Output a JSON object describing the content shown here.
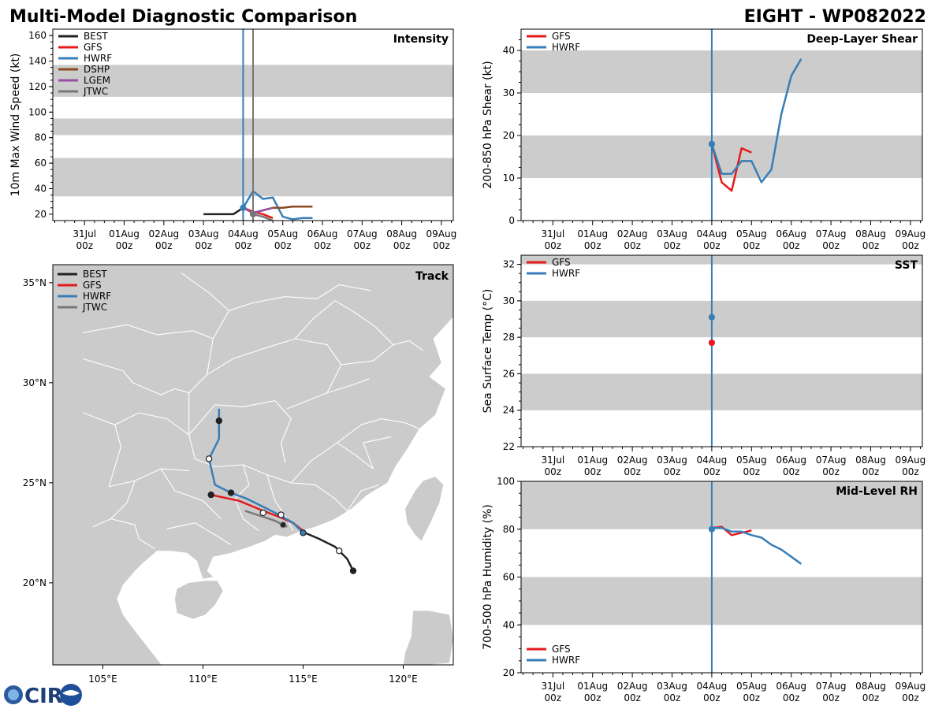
{
  "header": {
    "left_title": "Multi-Model Diagnostic Comparison",
    "right_title": "EIGHT - WP082022"
  },
  "logo": {
    "text": "CIRA"
  },
  "colors": {
    "BEST": "#222222",
    "GFS": "#e41a1c",
    "HWRF": "#377eb8",
    "DSHP": "#8c4a21",
    "LGEM": "#984ea3",
    "JTWC": "#777777",
    "band": "#cccccc",
    "land": "#cbcbcb"
  },
  "time_axis": {
    "labels_top": [
      "31Jul",
      "01Aug",
      "02Aug",
      "03Aug",
      "04Aug",
      "05Aug",
      "06Aug",
      "07Aug",
      "08Aug",
      "09Aug"
    ],
    "labels_bottom": [
      "00z",
      "00z",
      "00z",
      "00z",
      "00z",
      "00z",
      "00z",
      "00z",
      "00z",
      "00z"
    ],
    "start_day": -0.8,
    "end_day": 9.3
  },
  "chart_data": [
    {
      "id": "intensity",
      "type": "line",
      "title": "Intensity",
      "xlabel": "",
      "ylabel": "10m Max Wind Speed (kt)",
      "ylim": [
        15,
        165
      ],
      "yticks": [
        20,
        40,
        60,
        80,
        100,
        120,
        140,
        160
      ],
      "bands": [
        [
          34,
          64
        ],
        [
          82,
          95
        ],
        [
          112,
          137
        ]
      ],
      "vlines": [
        {
          "x": 4.0,
          "color": "HWRF"
        },
        {
          "x": 4.25,
          "color": "JTWC"
        }
      ],
      "legend": [
        "BEST",
        "GFS",
        "HWRF",
        "DSHP",
        "LGEM",
        "JTWC"
      ],
      "series": [
        {
          "name": "BEST",
          "x": [
            3.0,
            3.25,
            3.5,
            3.75,
            4.0
          ],
          "y": [
            20,
            20,
            20,
            20,
            25
          ]
        },
        {
          "name": "GFS",
          "x": [
            4.0,
            4.25,
            4.5,
            4.75
          ],
          "y": [
            25,
            22,
            20,
            17
          ]
        },
        {
          "name": "HWRF",
          "x": [
            4.0,
            4.25,
            4.5,
            4.75,
            5.0,
            5.25,
            5.5,
            5.75
          ],
          "y": [
            25,
            38,
            32,
            33,
            18,
            16,
            17,
            17
          ]
        },
        {
          "name": "DSHP",
          "x": [
            4.0,
            4.25,
            4.5,
            4.75,
            5.0,
            5.25,
            5.5,
            5.75
          ],
          "y": [
            25,
            21,
            23,
            25,
            25,
            26,
            26,
            26
          ]
        },
        {
          "name": "LGEM",
          "x": [
            4.0,
            4.25,
            4.5,
            4.75
          ],
          "y": [
            25,
            21,
            23,
            25
          ]
        },
        {
          "name": "JTWC",
          "x": [
            4.25,
            4.5,
            4.75
          ],
          "y": [
            20,
            18,
            15
          ]
        }
      ],
      "markers": [
        {
          "name": "HWRF",
          "x": 4.0,
          "y": 25,
          "fill": "solid"
        },
        {
          "name": "JTWC",
          "x": 4.25,
          "y": 20,
          "fill": "solid"
        }
      ]
    },
    {
      "id": "shear",
      "type": "line",
      "title": "Deep-Layer Shear",
      "xlabel": "",
      "ylabel": "200-850 hPa Shear (kt)",
      "ylim": [
        0,
        45
      ],
      "yticks": [
        0,
        10,
        20,
        30,
        40
      ],
      "bands": [
        [
          10,
          20
        ],
        [
          30,
          40
        ]
      ],
      "vlines": [
        {
          "x": 4.0,
          "color": "HWRF"
        }
      ],
      "legend": [
        "GFS",
        "HWRF"
      ],
      "series": [
        {
          "name": "GFS",
          "x": [
            4.0,
            4.25,
            4.5,
            4.75,
            5.0
          ],
          "y": [
            18,
            9,
            7,
            17,
            16
          ]
        },
        {
          "name": "HWRF",
          "x": [
            4.0,
            4.25,
            4.5,
            4.75,
            5.0,
            5.25,
            5.5,
            5.75,
            6.0,
            6.25
          ],
          "y": [
            18,
            11,
            11,
            14,
            14,
            9,
            12,
            25,
            34,
            38
          ]
        }
      ],
      "markers": [
        {
          "name": "HWRF",
          "x": 4.0,
          "y": 18,
          "fill": "solid"
        }
      ]
    },
    {
      "id": "sst",
      "type": "line",
      "title": "SST",
      "xlabel": "",
      "ylabel": "Sea Surface Temp (°C)",
      "ylim": [
        22,
        32.5
      ],
      "yticks": [
        22,
        24,
        26,
        28,
        30,
        32
      ],
      "bands": [
        [
          24,
          26
        ],
        [
          28,
          30
        ],
        [
          32,
          32.5
        ]
      ],
      "vlines": [
        {
          "x": 4.0,
          "color": "HWRF"
        }
      ],
      "legend": [
        "GFS",
        "HWRF"
      ],
      "series": [],
      "markers": [
        {
          "name": "HWRF",
          "x": 4.0,
          "y": 29.1,
          "fill": "solid"
        },
        {
          "name": "GFS",
          "x": 4.0,
          "y": 27.7,
          "fill": "solid"
        }
      ]
    },
    {
      "id": "rh",
      "type": "line",
      "title": "Mid-Level RH",
      "xlabel": "",
      "ylabel": "700-500 hPa Humidity (%)",
      "ylim": [
        20,
        100
      ],
      "yticks": [
        20,
        40,
        60,
        80,
        100
      ],
      "bands": [
        [
          40,
          60
        ],
        [
          80,
          100
        ]
      ],
      "vlines": [
        {
          "x": 4.0,
          "color": "HWRF"
        }
      ],
      "legend": [
        "GFS",
        "HWRF"
      ],
      "series": [
        {
          "name": "GFS",
          "x": [
            4.0,
            4.25,
            4.5,
            4.75,
            5.0
          ],
          "y": [
            80.5,
            81,
            77.5,
            78.5,
            79.5
          ]
        },
        {
          "name": "HWRF",
          "x": [
            4.0,
            4.25,
            4.5,
            4.75,
            5.0,
            5.25,
            5.5,
            5.75,
            6.0,
            6.25
          ],
          "y": [
            80.5,
            80.5,
            79,
            79,
            77.5,
            76.5,
            73.5,
            71.5,
            68.5,
            65.5
          ]
        }
      ],
      "markers": [
        {
          "name": "HWRF",
          "x": 4.0,
          "y": 80,
          "fill": "solid"
        }
      ]
    },
    {
      "id": "track",
      "type": "scatter",
      "title": "Track",
      "xlabel": "",
      "ylabel": "",
      "xlim": [
        102.5,
        122.5
      ],
      "ylim": [
        15.9,
        35.9
      ],
      "xticks": [
        105,
        110,
        115,
        120
      ],
      "xtick_labels": [
        "105°E",
        "110°E",
        "115°E",
        "120°E"
      ],
      "yticks": [
        20,
        25,
        30,
        35
      ],
      "ytick_labels": [
        "20°N",
        "25°N",
        "30°N",
        "35°N"
      ],
      "legend": [
        "BEST",
        "GFS",
        "HWRF",
        "JTWC"
      ],
      "series": [
        {
          "name": "BEST",
          "lon": [
            117.5,
            117.2,
            116.6,
            115.8,
            115.1
          ],
          "lat": [
            20.6,
            21.2,
            21.8,
            22.2,
            22.5
          ]
        },
        {
          "name": "GFS",
          "lon": [
            115.0,
            114.5,
            113.8,
            113.0,
            111.8,
            110.4
          ],
          "lat": [
            22.6,
            23.0,
            23.3,
            23.6,
            24.1,
            24.4
          ]
        },
        {
          "name": "HWRF",
          "lon": [
            115.0,
            114.5,
            113.8,
            113.0,
            112.2,
            111.4,
            110.6,
            110.3,
            110.4,
            110.8,
            110.8,
            110.8
          ],
          "lat": [
            22.5,
            23.0,
            23.4,
            23.8,
            24.2,
            24.5,
            24.9,
            26.2,
            26.4,
            27.2,
            28.1,
            28.7
          ]
        },
        {
          "name": "JTWC",
          "lon": [
            114.2,
            114.0,
            113.6,
            113.0,
            112.4,
            112.1
          ],
          "lat": [
            22.8,
            22.9,
            23.1,
            23.3,
            23.5,
            23.6
          ]
        }
      ],
      "markers": [
        {
          "name": "BEST",
          "lon": 117.5,
          "lat": 20.6,
          "fill": "solid"
        },
        {
          "name": "BEST",
          "lon": 116.8,
          "lat": 21.6,
          "fill": "hollow"
        },
        {
          "name": "GFS",
          "lon": 110.4,
          "lat": 24.4,
          "fill": "solid"
        },
        {
          "name": "HWRF",
          "lon": 115.0,
          "lat": 22.5,
          "fill": "solid"
        },
        {
          "name": "HWRF",
          "lon": 113.9,
          "lat": 23.4,
          "fill": "hollow"
        },
        {
          "name": "HWRF",
          "lon": 113.0,
          "lat": 23.5,
          "fill": "hollow"
        },
        {
          "name": "HWRF",
          "lon": 111.4,
          "lat": 24.5,
          "fill": "solid"
        },
        {
          "name": "HWRF",
          "lon": 110.3,
          "lat": 26.2,
          "fill": "hollow"
        },
        {
          "name": "HWRF",
          "lon": 110.8,
          "lat": 28.1,
          "fill": "solid"
        },
        {
          "name": "JTWC",
          "lon": 114.0,
          "lat": 22.9,
          "fill": "solid"
        }
      ]
    }
  ]
}
